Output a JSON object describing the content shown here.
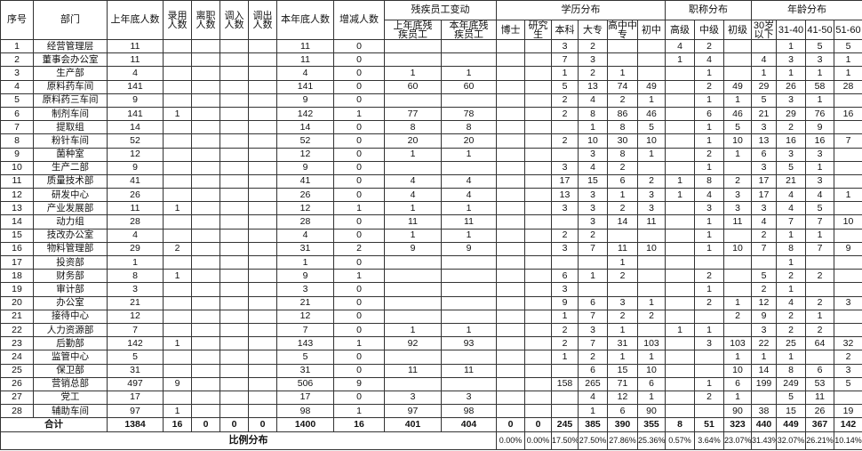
{
  "headers": {
    "seq": "序号",
    "dept": "部门",
    "prev_count": "上年底人数",
    "hired": "录用人数",
    "left": "离职人数",
    "transfer_in": "调入人数",
    "transfer_out": "调出人数",
    "curr_count": "本年底人数",
    "change": "增减人数",
    "disabled_group": "残疾员工变动",
    "disabled_prev": "上年底残疾员工",
    "disabled_curr": "本年底残疾员工",
    "edu_group": "学历分布",
    "edu": [
      "博士",
      "研究生",
      "本科",
      "大专",
      "高中中专",
      "初中"
    ],
    "title_group": "职称分布",
    "titles": [
      "高级",
      "中级",
      "初级"
    ],
    "age_group": "年龄分布",
    "ages": [
      "30岁以下",
      "31-40",
      "41-50",
      "51-60"
    ]
  },
  "rows": [
    [
      "1",
      "经营管理层",
      "11",
      "",
      "",
      "",
      "",
      "11",
      "0",
      "",
      "",
      "",
      "",
      "3",
      "2",
      "",
      "",
      "4",
      "2",
      "",
      "",
      "1",
      "5",
      "5"
    ],
    [
      "2",
      "董事会办公室",
      "11",
      "",
      "",
      "",
      "",
      "11",
      "0",
      "",
      "",
      "",
      "",
      "7",
      "3",
      "",
      "",
      "1",
      "4",
      "",
      "4",
      "3",
      "3",
      "1"
    ],
    [
      "3",
      "生产部",
      "4",
      "",
      "",
      "",
      "",
      "4",
      "0",
      "1",
      "1",
      "",
      "",
      "1",
      "2",
      "1",
      "",
      "",
      "1",
      "",
      "1",
      "1",
      "1",
      "1"
    ],
    [
      "4",
      "原料药车间",
      "141",
      "",
      "",
      "",
      "",
      "141",
      "0",
      "60",
      "60",
      "",
      "",
      "5",
      "13",
      "74",
      "49",
      "",
      "2",
      "49",
      "29",
      "26",
      "58",
      "28"
    ],
    [
      "5",
      "原料药三车间",
      "9",
      "",
      "",
      "",
      "",
      "9",
      "0",
      "",
      "",
      "",
      "",
      "2",
      "4",
      "2",
      "1",
      "",
      "1",
      "1",
      "5",
      "3",
      "1",
      ""
    ],
    [
      "6",
      "制剂车间",
      "141",
      "1",
      "",
      "",
      "",
      "142",
      "1",
      "77",
      "78",
      "",
      "",
      "2",
      "8",
      "86",
      "46",
      "",
      "6",
      "46",
      "21",
      "29",
      "76",
      "16"
    ],
    [
      "7",
      "提取组",
      "14",
      "",
      "",
      "",
      "",
      "14",
      "0",
      "8",
      "8",
      "",
      "",
      "",
      "1",
      "8",
      "5",
      "",
      "1",
      "5",
      "3",
      "2",
      "9",
      ""
    ],
    [
      "8",
      "粉针车间",
      "52",
      "",
      "",
      "",
      "",
      "52",
      "0",
      "20",
      "20",
      "",
      "",
      "2",
      "10",
      "30",
      "10",
      "",
      "1",
      "10",
      "13",
      "16",
      "16",
      "7"
    ],
    [
      "9",
      "菌种室",
      "12",
      "",
      "",
      "",
      "",
      "12",
      "0",
      "1",
      "1",
      "",
      "",
      "",
      "3",
      "8",
      "1",
      "",
      "2",
      "1",
      "6",
      "3",
      "3",
      ""
    ],
    [
      "10",
      "生产二部",
      "9",
      "",
      "",
      "",
      "",
      "9",
      "0",
      "",
      "",
      "",
      "",
      "3",
      "4",
      "2",
      "",
      "",
      "1",
      "",
      "3",
      "5",
      "1",
      ""
    ],
    [
      "11",
      "质量技术部",
      "41",
      "",
      "",
      "",
      "",
      "41",
      "0",
      "4",
      "4",
      "",
      "",
      "17",
      "15",
      "6",
      "2",
      "1",
      "8",
      "2",
      "17",
      "21",
      "3",
      ""
    ],
    [
      "12",
      "研发中心",
      "26",
      "",
      "",
      "",
      "",
      "26",
      "0",
      "4",
      "4",
      "",
      "",
      "13",
      "3",
      "1",
      "3",
      "1",
      "4",
      "3",
      "17",
      "4",
      "4",
      "1"
    ],
    [
      "13",
      "产业发展部",
      "11",
      "1",
      "",
      "",
      "",
      "12",
      "1",
      "1",
      "1",
      "",
      "",
      "3",
      "3",
      "2",
      "3",
      "",
      "3",
      "3",
      "3",
      "4",
      "5",
      ""
    ],
    [
      "14",
      "动力组",
      "28",
      "",
      "",
      "",
      "",
      "28",
      "0",
      "11",
      "11",
      "",
      "",
      "",
      "3",
      "14",
      "11",
      "",
      "1",
      "11",
      "4",
      "7",
      "7",
      "10"
    ],
    [
      "15",
      "技改办公室",
      "4",
      "",
      "",
      "",
      "",
      "4",
      "0",
      "1",
      "1",
      "",
      "",
      "2",
      "2",
      "",
      "",
      "",
      "1",
      "",
      "2",
      "1",
      "1",
      ""
    ],
    [
      "16",
      "物料管理部",
      "29",
      "2",
      "",
      "",
      "",
      "31",
      "2",
      "9",
      "9",
      "",
      "",
      "3",
      "7",
      "11",
      "10",
      "",
      "1",
      "10",
      "7",
      "8",
      "7",
      "9"
    ],
    [
      "17",
      "投资部",
      "1",
      "",
      "",
      "",
      "",
      "1",
      "0",
      "",
      "",
      "",
      "",
      "",
      "",
      "1",
      "",
      "",
      "",
      "",
      "",
      "1",
      "",
      ""
    ],
    [
      "18",
      "财务部",
      "8",
      "1",
      "",
      "",
      "",
      "9",
      "1",
      "",
      "",
      "",
      "",
      "6",
      "1",
      "2",
      "",
      "",
      "2",
      "",
      "5",
      "2",
      "2",
      ""
    ],
    [
      "19",
      "审计部",
      "3",
      "",
      "",
      "",
      "",
      "3",
      "0",
      "",
      "",
      "",
      "",
      "3",
      "",
      "",
      "",
      "",
      "1",
      "",
      "2",
      "1",
      "",
      ""
    ],
    [
      "20",
      "办公室",
      "21",
      "",
      "",
      "",
      "",
      "21",
      "0",
      "",
      "",
      "",
      "",
      "9",
      "6",
      "3",
      "1",
      "",
      "2",
      "1",
      "12",
      "4",
      "2",
      "3"
    ],
    [
      "21",
      "接待中心",
      "12",
      "",
      "",
      "",
      "",
      "12",
      "0",
      "",
      "",
      "",
      "",
      "1",
      "7",
      "2",
      "2",
      "",
      "",
      "2",
      "9",
      "2",
      "1",
      ""
    ],
    [
      "22",
      "人力资源部",
      "7",
      "",
      "",
      "",
      "",
      "7",
      "0",
      "1",
      "1",
      "",
      "",
      "2",
      "3",
      "1",
      "",
      "1",
      "1",
      "",
      "3",
      "2",
      "2",
      ""
    ],
    [
      "23",
      "后勤部",
      "142",
      "1",
      "",
      "",
      "",
      "143",
      "1",
      "92",
      "93",
      "",
      "",
      "2",
      "7",
      "31",
      "103",
      "",
      "3",
      "103",
      "22",
      "25",
      "64",
      "32"
    ],
    [
      "24",
      "监管中心",
      "5",
      "",
      "",
      "",
      "",
      "5",
      "0",
      "",
      "",
      "",
      "",
      "1",
      "2",
      "1",
      "1",
      "",
      "",
      "1",
      "1",
      "1",
      "",
      "2"
    ],
    [
      "25",
      "保卫部",
      "31",
      "",
      "",
      "",
      "",
      "31",
      "0",
      "11",
      "11",
      "",
      "",
      "",
      "6",
      "15",
      "10",
      "",
      "",
      "10",
      "14",
      "8",
      "6",
      "3"
    ],
    [
      "26",
      "营销总部",
      "497",
      "9",
      "",
      "",
      "",
      "506",
      "9",
      "",
      "",
      "",
      "",
      "158",
      "265",
      "71",
      "6",
      "",
      "1",
      "6",
      "199",
      "249",
      "53",
      "5"
    ],
    [
      "27",
      "党工",
      "17",
      "",
      "",
      "",
      "",
      "17",
      "0",
      "3",
      "3",
      "",
      "",
      "",
      "4",
      "12",
      "1",
      "",
      "2",
      "1",
      "",
      "5",
      "11",
      ""
    ],
    [
      "28",
      "辅助车间",
      "97",
      "1",
      "",
      "",
      "",
      "98",
      "1",
      "97",
      "98",
      "",
      "",
      "",
      "1",
      "6",
      "90",
      "",
      "",
      "90",
      "38",
      "15",
      "26",
      "19"
    ]
  ],
  "total": {
    "label": "合计",
    "values": [
      "1384",
      "16",
      "0",
      "0",
      "0",
      "1400",
      "16",
      "401",
      "404",
      "0",
      "0",
      "245",
      "385",
      "390",
      "355",
      "8",
      "51",
      "323",
      "440",
      "449",
      "367",
      "142"
    ]
  },
  "ratio": {
    "label": "比例分布",
    "values": [
      "0.00%",
      "0.00%",
      "17.50%",
      "27.50%",
      "27.86%",
      "25.36%",
      "0.57%",
      "3.64%",
      "23.07%",
      "31.43%",
      "32.07%",
      "26.21%",
      "10.14%"
    ]
  }
}
